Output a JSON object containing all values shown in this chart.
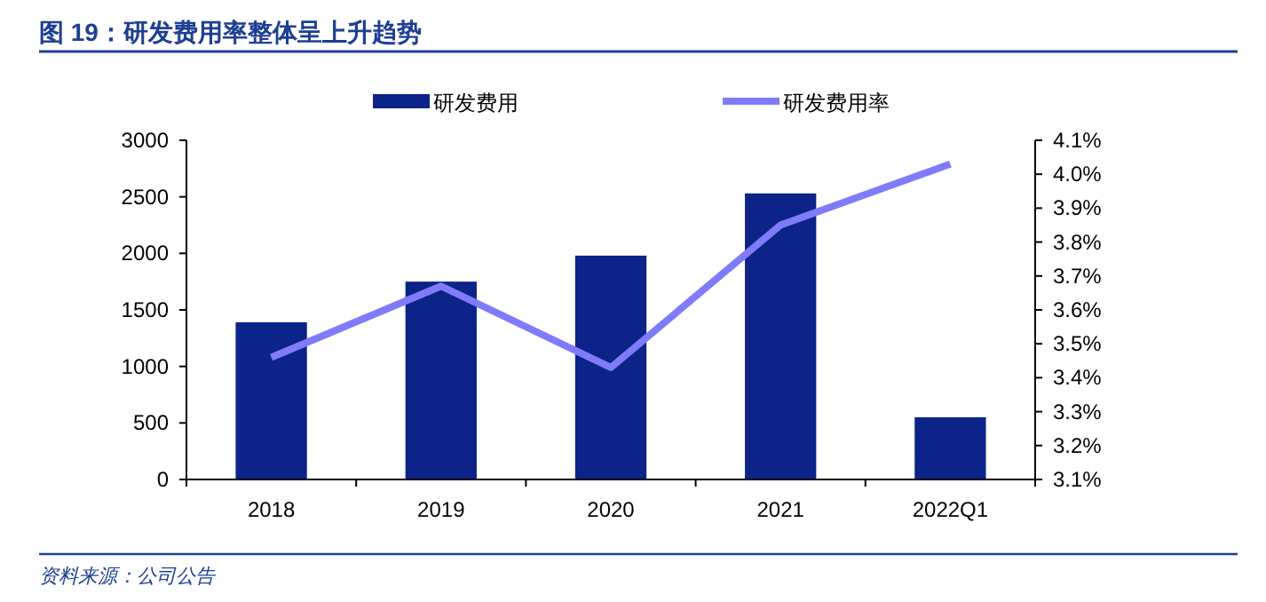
{
  "chart_data": {
    "type": "bar",
    "title": "图 19：研发费用率整体呈上升趋势",
    "categories": [
      "2018",
      "2019",
      "2020",
      "2021",
      "2022Q1"
    ],
    "series": [
      {
        "name": "研发费用",
        "color": "#0c2389",
        "values": [
          1390,
          1750,
          1980,
          2530,
          550
        ]
      },
      {
        "name": "研发费用率",
        "type": "line",
        "axis": "y2",
        "color": "#7f7bfb",
        "values": [
          3.46,
          3.67,
          3.43,
          3.85,
          4.03
        ]
      }
    ],
    "ylim": [
      0,
      3000
    ],
    "yticks": [
      0,
      500,
      1000,
      1500,
      2000,
      2500,
      3000
    ],
    "y2lim": [
      3.1,
      4.1
    ],
    "y2ticks": [
      {
        "value": 3.1,
        "label": "3.1%"
      },
      {
        "value": 3.2,
        "label": "3.2%"
      },
      {
        "value": 3.3,
        "label": "3.3%"
      },
      {
        "value": 3.4,
        "label": "3.4%"
      },
      {
        "value": 3.5,
        "label": "3.5%"
      },
      {
        "value": 3.6,
        "label": "3.6%"
      },
      {
        "value": 3.7,
        "label": "3.7%"
      },
      {
        "value": 3.8,
        "label": "3.8%"
      },
      {
        "value": 3.9,
        "label": "3.9%"
      },
      {
        "value": 4.0,
        "label": "4.0%"
      },
      {
        "value": 4.1,
        "label": "4.1%"
      }
    ],
    "legend": "top",
    "marker": "none",
    "annotations": [
      "资料来源：公司公告"
    ]
  }
}
